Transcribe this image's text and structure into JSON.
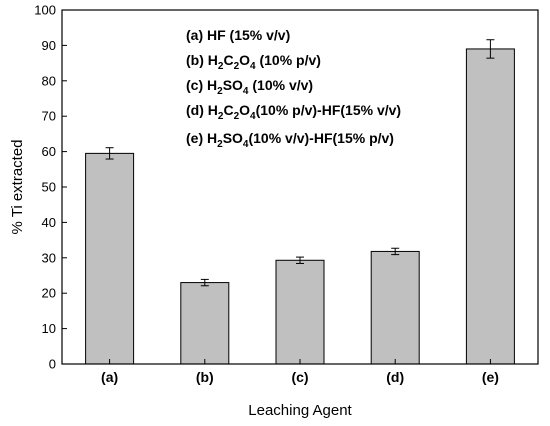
{
  "chart_data": {
    "type": "bar",
    "categories": [
      "(a)",
      "(b)",
      "(c)",
      "(d)",
      "(e)"
    ],
    "values": [
      59.5,
      23.0,
      29.3,
      31.8,
      89.0
    ],
    "errors": [
      1.6,
      0.9,
      0.9,
      0.9,
      2.6
    ],
    "title": "",
    "xlabel": "Leaching Agent",
    "ylabel": "% Ti extracted",
    "ylim": [
      0,
      100
    ],
    "ytick_step": 10,
    "grid": false,
    "bar_color": "#c0c0c0",
    "legend_position": "top-center",
    "legend_entries": [
      [
        {
          "t": "(a) HF (15% v/v)"
        }
      ],
      [
        {
          "t": "(b) H"
        },
        {
          "t": "2",
          "sub": true
        },
        {
          "t": "C"
        },
        {
          "t": "2",
          "sub": true
        },
        {
          "t": "O"
        },
        {
          "t": "4",
          "sub": true
        },
        {
          "t": " (10% p/v)"
        }
      ],
      [
        {
          "t": "(c) H"
        },
        {
          "t": "2",
          "sub": true
        },
        {
          "t": "SO"
        },
        {
          "t": "4",
          "sub": true
        },
        {
          "t": " (10% v/v)"
        }
      ],
      [
        {
          "t": "(d) H"
        },
        {
          "t": "2",
          "sub": true
        },
        {
          "t": "C"
        },
        {
          "t": "2",
          "sub": true
        },
        {
          "t": "O"
        },
        {
          "t": "4",
          "sub": true
        },
        {
          "t": "(10% p/v)-HF(15% v/v)"
        }
      ],
      [
        {
          "t": "(e) H"
        },
        {
          "t": "2",
          "sub": true
        },
        {
          "t": "SO"
        },
        {
          "t": "4",
          "sub": true
        },
        {
          "t": "(10% v/v)-HF(15% p/v)"
        }
      ]
    ]
  }
}
